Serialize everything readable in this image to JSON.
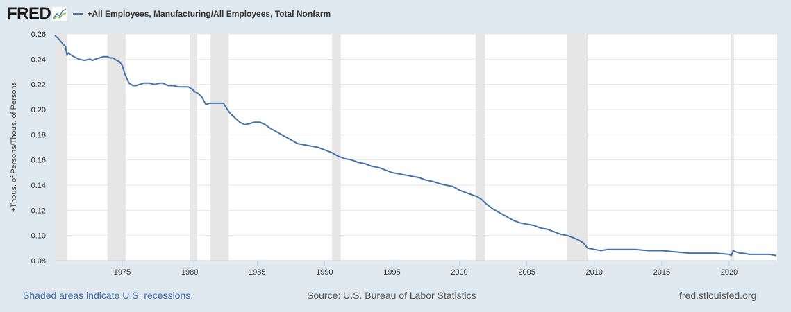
{
  "header": {
    "logo": "FRED",
    "legend_label": "+All Employees, Manufacturing/All Employees, Total Nonfarm",
    "series_color": "#4572a7"
  },
  "footer": {
    "recession_note": "Shaded areas indicate U.S. recessions.",
    "source": "Source: U.S. Bureau of Labor Statistics",
    "site": "fred.stlouisfed.org"
  },
  "chart_data": {
    "type": "line",
    "title": "+All Employees, Manufacturing/All Employees, Total Nonfarm",
    "xlabel": "",
    "ylabel": "+Thous. of Persons/Thous. of Persons",
    "ylim": [
      0.08,
      0.26
    ],
    "xlim": [
      1970.0,
      2023.5
    ],
    "grid": true,
    "legend_position": "top",
    "y_ticks": [
      "0.08",
      "0.10",
      "0.12",
      "0.14",
      "0.16",
      "0.18",
      "0.20",
      "0.22",
      "0.24",
      "0.26"
    ],
    "x_ticks": [
      "1975",
      "1980",
      "1985",
      "1990",
      "1995",
      "2000",
      "2005",
      "2010",
      "2015",
      "2020"
    ],
    "recessions": [
      [
        1969.95,
        1970.9
      ],
      [
        1973.9,
        1975.25
      ],
      [
        1980.0,
        1980.55
      ],
      [
        1981.55,
        1982.9
      ],
      [
        1990.55,
        1991.2
      ],
      [
        2001.2,
        2001.9
      ],
      [
        2007.95,
        2009.5
      ],
      [
        2020.1,
        2020.35
      ]
    ],
    "series": [
      {
        "name": "+All Employees, Manufacturing/All Employees, Total Nonfarm",
        "x": [
          1970.0,
          1970.3,
          1970.6,
          1970.8,
          1970.9,
          1971.0,
          1971.1,
          1971.4,
          1971.8,
          1972.2,
          1972.6,
          1972.8,
          1973.0,
          1973.3,
          1973.6,
          1973.9,
          1974.1,
          1974.3,
          1974.6,
          1974.8,
          1975.0,
          1975.2,
          1975.5,
          1975.8,
          1976.0,
          1976.3,
          1976.6,
          1977.0,
          1977.4,
          1977.8,
          1978.0,
          1978.4,
          1978.8,
          1979.2,
          1979.6,
          1979.9,
          1980.2,
          1980.4,
          1980.6,
          1980.9,
          1981.2,
          1981.5,
          1981.8,
          1982.1,
          1982.5,
          1982.8,
          1983.0,
          1983.3,
          1983.7,
          1984.1,
          1984.5,
          1984.8,
          1985.2,
          1985.6,
          1986.0,
          1986.5,
          1987.0,
          1987.5,
          1988.0,
          1988.5,
          1989.0,
          1989.5,
          1990.0,
          1990.5,
          1991.0,
          1991.5,
          1992.0,
          1992.5,
          1993.0,
          1993.5,
          1994.0,
          1994.5,
          1995.0,
          1995.5,
          1996.0,
          1996.5,
          1997.0,
          1997.5,
          1998.0,
          1998.3,
          1998.6,
          1999.0,
          1999.5,
          2000.0,
          2000.5,
          2001.0,
          2001.3,
          2001.6,
          2002.0,
          2002.5,
          2003.0,
          2003.5,
          2004.0,
          2004.5,
          2005.0,
          2005.5,
          2006.0,
          2006.5,
          2007.0,
          2007.5,
          2008.0,
          2008.5,
          2008.9,
          2009.2,
          2009.5,
          2010.0,
          2010.5,
          2011.0,
          2011.5,
          2012.0,
          2012.5,
          2013.0,
          2014.0,
          2015.0,
          2016.0,
          2017.0,
          2018.0,
          2019.0,
          2020.0,
          2020.15,
          2020.3,
          2020.5,
          2020.8,
          2021.0,
          2021.5,
          2022.0,
          2022.5,
          2023.0,
          2023.5
        ],
        "values": [
          0.259,
          0.256,
          0.252,
          0.25,
          0.243,
          0.245,
          0.244,
          0.242,
          0.24,
          0.239,
          0.24,
          0.239,
          0.24,
          0.241,
          0.242,
          0.242,
          0.241,
          0.241,
          0.239,
          0.238,
          0.235,
          0.228,
          0.221,
          0.219,
          0.219,
          0.22,
          0.221,
          0.221,
          0.22,
          0.221,
          0.221,
          0.219,
          0.219,
          0.218,
          0.218,
          0.218,
          0.216,
          0.214,
          0.213,
          0.21,
          0.204,
          0.205,
          0.205,
          0.205,
          0.205,
          0.2,
          0.197,
          0.194,
          0.19,
          0.188,
          0.189,
          0.19,
          0.19,
          0.188,
          0.185,
          0.182,
          0.179,
          0.176,
          0.173,
          0.172,
          0.171,
          0.17,
          0.168,
          0.166,
          0.163,
          0.161,
          0.16,
          0.158,
          0.157,
          0.155,
          0.154,
          0.152,
          0.15,
          0.149,
          0.148,
          0.147,
          0.146,
          0.144,
          0.143,
          0.142,
          0.141,
          0.14,
          0.139,
          0.136,
          0.134,
          0.132,
          0.131,
          0.129,
          0.125,
          0.121,
          0.118,
          0.115,
          0.112,
          0.11,
          0.109,
          0.108,
          0.106,
          0.105,
          0.103,
          0.101,
          0.1,
          0.098,
          0.096,
          0.094,
          0.09,
          0.089,
          0.088,
          0.089,
          0.089,
          0.089,
          0.089,
          0.089,
          0.088,
          0.088,
          0.087,
          0.086,
          0.086,
          0.086,
          0.085,
          0.084,
          0.088,
          0.087,
          0.086,
          0.086,
          0.085,
          0.085,
          0.085,
          0.085,
          0.084
        ]
      }
    ]
  }
}
